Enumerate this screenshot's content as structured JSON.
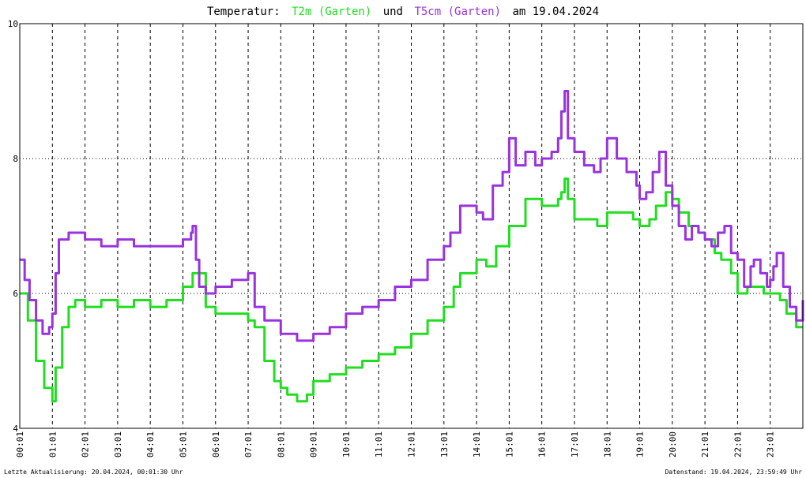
{
  "title": {
    "prefix": "Temperatur:",
    "series1": "T2m (Garten)",
    "middle": "und",
    "series2": "T5cm (Garten)",
    "suffix": "am 19.04.2024"
  },
  "footer": {
    "left": "Letzte Aktualisierung: 20.04.2024, 00:01:30 Uhr",
    "right": "Datenstand: 19.04.2024, 23:59:49 Uhr"
  },
  "colors": {
    "t2m": "#22dd22",
    "t5cm": "#9933dd",
    "axis": "#000000",
    "grid": "#000000"
  },
  "chart_data": {
    "type": "line",
    "title": "Temperatur: T2m (Garten) und T5cm (Garten) am 19.04.2024",
    "xlabel": "",
    "ylabel": "",
    "xlim": [
      0,
      24
    ],
    "ylim": [
      4,
      10
    ],
    "y_ticks": [
      4,
      6,
      8,
      10
    ],
    "x_tick_labels": [
      "00:01",
      "01:01",
      "02:01",
      "03:01",
      "04:01",
      "05:01",
      "06:01",
      "07:01",
      "08:01",
      "09:01",
      "10:01",
      "11:01",
      "12:01",
      "13:01",
      "14:01",
      "15:01",
      "16:01",
      "17:01",
      "18:01",
      "19:01",
      "20:00",
      "21:01",
      "22:01",
      "23:01"
    ],
    "grid": true,
    "series": [
      {
        "name": "T2m (Garten)",
        "x": [
          0.0,
          0.25,
          0.5,
          0.75,
          1.0,
          1.1,
          1.3,
          1.5,
          1.7,
          2.0,
          2.5,
          3.0,
          3.5,
          4.0,
          4.5,
          5.0,
          5.3,
          5.5,
          5.7,
          6.0,
          6.5,
          7.0,
          7.2,
          7.5,
          7.8,
          8.0,
          8.2,
          8.5,
          8.8,
          9.0,
          9.5,
          10.0,
          10.5,
          11.0,
          11.5,
          12.0,
          12.5,
          13.0,
          13.3,
          13.5,
          14.0,
          14.3,
          14.6,
          15.0,
          15.5,
          16.0,
          16.3,
          16.5,
          16.6,
          16.7,
          16.8,
          17.0,
          17.5,
          17.7,
          18.0,
          18.5,
          18.8,
          19.0,
          19.3,
          19.5,
          19.8,
          20.0,
          20.2,
          20.5,
          20.8,
          21.0,
          21.3,
          21.5,
          21.8,
          22.0,
          22.3,
          22.5,
          22.8,
          23.0,
          23.3,
          23.5,
          23.8,
          24.0
        ],
        "values": [
          6.0,
          5.6,
          5.0,
          4.6,
          4.4,
          4.9,
          5.5,
          5.8,
          5.9,
          5.8,
          5.9,
          5.8,
          5.9,
          5.8,
          5.9,
          6.1,
          6.3,
          6.3,
          5.8,
          5.7,
          5.7,
          5.6,
          5.5,
          5.0,
          4.7,
          4.6,
          4.5,
          4.4,
          4.5,
          4.7,
          4.8,
          4.9,
          5.0,
          5.1,
          5.2,
          5.4,
          5.6,
          5.8,
          6.1,
          6.3,
          6.5,
          6.4,
          6.7,
          7.0,
          7.4,
          7.3,
          7.3,
          7.4,
          7.5,
          7.7,
          7.4,
          7.1,
          7.1,
          7.0,
          7.2,
          7.2,
          7.1,
          7.0,
          7.1,
          7.3,
          7.5,
          7.4,
          7.2,
          7.0,
          6.9,
          6.8,
          6.6,
          6.5,
          6.3,
          6.0,
          6.1,
          6.1,
          6.0,
          6.0,
          5.9,
          5.7,
          5.5,
          5.5
        ]
      },
      {
        "name": "T5cm (Garten)",
        "x": [
          0.0,
          0.15,
          0.3,
          0.5,
          0.7,
          0.9,
          1.0,
          1.1,
          1.2,
          1.3,
          1.5,
          2.0,
          2.5,
          3.0,
          3.5,
          4.0,
          4.5,
          5.0,
          5.25,
          5.3,
          5.4,
          5.5,
          5.7,
          6.0,
          6.5,
          7.0,
          7.2,
          7.5,
          8.0,
          8.5,
          9.0,
          9.5,
          10.0,
          10.5,
          11.0,
          11.5,
          12.0,
          12.5,
          13.0,
          13.2,
          13.5,
          14.0,
          14.2,
          14.5,
          14.8,
          15.0,
          15.2,
          15.5,
          15.8,
          16.0,
          16.3,
          16.5,
          16.6,
          16.7,
          16.8,
          17.0,
          17.3,
          17.6,
          17.8,
          18.0,
          18.3,
          18.6,
          18.9,
          19.0,
          19.2,
          19.4,
          19.6,
          19.8,
          20.0,
          20.2,
          20.4,
          20.6,
          20.8,
          21.0,
          21.2,
          21.4,
          21.6,
          21.8,
          22.0,
          22.2,
          22.4,
          22.5,
          22.7,
          22.9,
          23.0,
          23.1,
          23.2,
          23.4,
          23.6,
          23.8,
          24.0
        ],
        "values": [
          6.5,
          6.2,
          5.9,
          5.6,
          5.4,
          5.5,
          5.7,
          6.3,
          6.8,
          6.8,
          6.9,
          6.8,
          6.7,
          6.8,
          6.7,
          6.7,
          6.7,
          6.8,
          6.9,
          7.0,
          6.5,
          6.1,
          6.0,
          6.1,
          6.2,
          6.3,
          5.8,
          5.6,
          5.4,
          5.3,
          5.4,
          5.5,
          5.7,
          5.8,
          5.9,
          6.1,
          6.2,
          6.5,
          6.7,
          6.9,
          7.3,
          7.2,
          7.1,
          7.6,
          7.8,
          8.3,
          7.9,
          8.1,
          7.9,
          8.0,
          8.1,
          8.3,
          8.7,
          9.0,
          8.3,
          8.1,
          7.9,
          7.8,
          8.0,
          8.3,
          8.0,
          7.8,
          7.6,
          7.4,
          7.5,
          7.8,
          8.1,
          7.6,
          7.3,
          7.0,
          6.8,
          7.0,
          6.9,
          6.8,
          6.7,
          6.9,
          7.0,
          6.6,
          6.5,
          6.1,
          6.4,
          6.5,
          6.3,
          6.1,
          6.2,
          6.4,
          6.6,
          6.1,
          5.8,
          5.6,
          5.9
        ]
      }
    ]
  }
}
